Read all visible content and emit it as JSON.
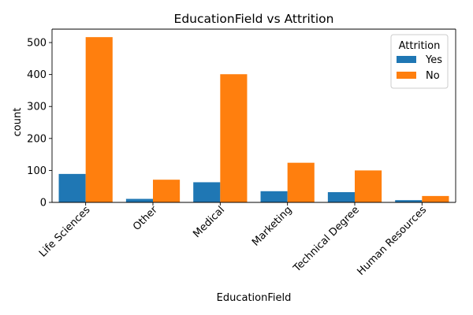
{
  "chart_data": {
    "type": "bar",
    "title": "EducationField vs Attrition",
    "xlabel": "EducationField",
    "ylabel": "count",
    "categories": [
      "Life Sciences",
      "Other",
      "Medical",
      "Marketing",
      "Technical Degree",
      "Human Resources"
    ],
    "series": [
      {
        "name": "Yes",
        "color": "#1f77b4",
        "values": [
          89,
          11,
          63,
          35,
          32,
          7
        ]
      },
      {
        "name": "No",
        "color": "#ff7f0e",
        "values": [
          517,
          71,
          401,
          124,
          100,
          20
        ]
      }
    ],
    "ylim": [
      0,
      542
    ],
    "yticks": [
      0,
      100,
      200,
      300,
      400,
      500
    ],
    "grid": false,
    "legend": {
      "title": "Attrition",
      "placement": "top-right"
    }
  }
}
